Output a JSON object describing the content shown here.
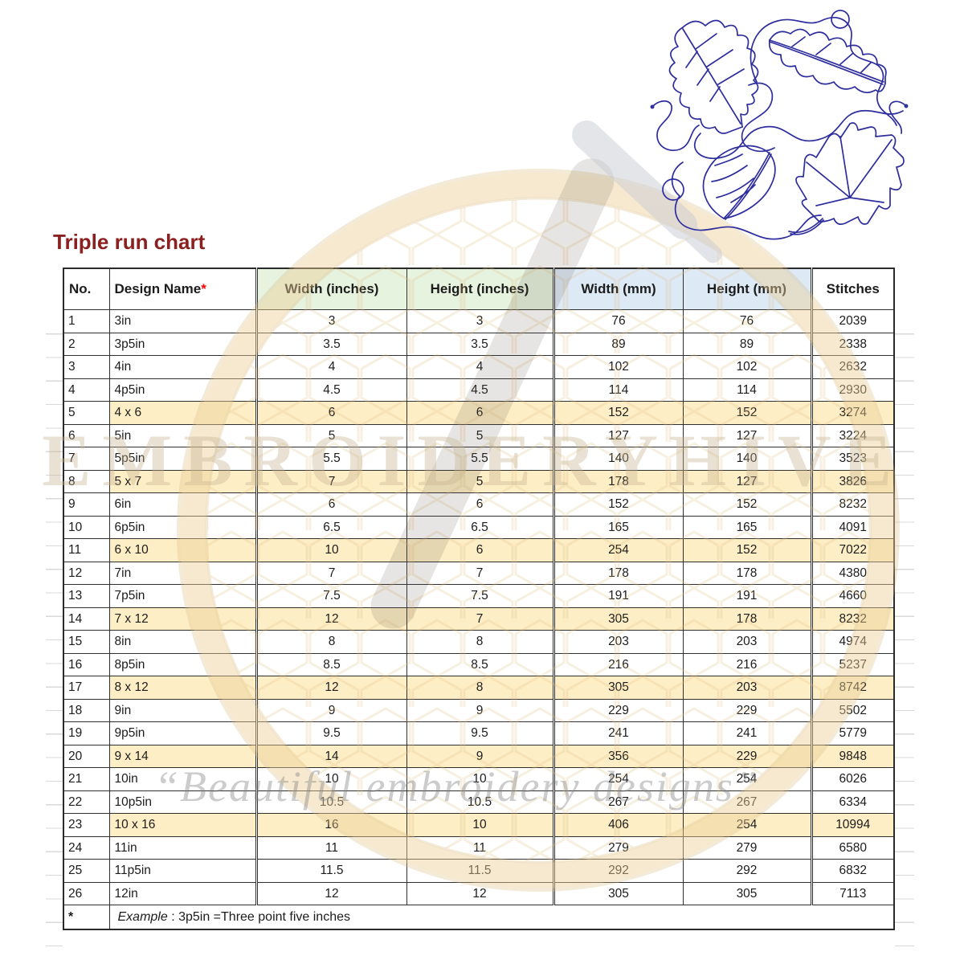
{
  "page_title": "Triple run chart",
  "header": {
    "no": "No.",
    "name": "Design Name",
    "name_marker": "*",
    "width_in": "Width (inches)",
    "height_in": "Height (inches)",
    "width_mm": "Width (mm)",
    "height_mm": "Height (mm)",
    "stitches": "Stitches"
  },
  "footnote": {
    "marker": "*",
    "label": "Example",
    "text": " : 3p5in =Three point five inches"
  },
  "watermarks": {
    "brand": "EMBROIDERYHIVE",
    "tagline": "“Beautiful embroidery designs”"
  },
  "decor": {
    "leaf_design": "blue-line-art embroidery quilt block with oak leaf, slender leaf, oval leaf and maple leaf joined by meander stipple stitching"
  },
  "colors": {
    "title": "#8B2020",
    "accent-red": "#FF0000",
    "inches-fill": "#E6F3DF",
    "mm-fill": "#DDEAF6",
    "highlight-fill": "#FDEEC6",
    "thread-blue": "#2D2D9E",
    "watermark-tan": "#E0BE82",
    "grid-line": "#D9D9D9"
  },
  "chart_data": {
    "type": "table",
    "title": "Triple run chart",
    "columns": [
      "No.",
      "Design Name*",
      "Width (inches)",
      "Height (inches)",
      "Width (mm)",
      "Height (mm)",
      "Stitches"
    ],
    "rows": [
      [
        "1",
        "3in",
        "3",
        "3",
        "76",
        "76",
        "2039"
      ],
      [
        "2",
        "3p5in",
        "3.5",
        "3.5",
        "89",
        "89",
        "2338"
      ],
      [
        "3",
        "4in",
        "4",
        "4",
        "102",
        "102",
        "2632"
      ],
      [
        "4",
        "4p5in",
        "4.5",
        "4.5",
        "114",
        "114",
        "2930"
      ],
      [
        "5",
        "4 x 6",
        "6",
        "6",
        "152",
        "152",
        "3274"
      ],
      [
        "6",
        "5in",
        "5",
        "5",
        "127",
        "127",
        "3224"
      ],
      [
        "7",
        "5p5in",
        "5.5",
        "5.5",
        "140",
        "140",
        "3523"
      ],
      [
        "8",
        "5 x 7",
        "7",
        "5",
        "178",
        "127",
        "3826"
      ],
      [
        "9",
        "6in",
        "6",
        "6",
        "152",
        "152",
        "8232"
      ],
      [
        "10",
        "6p5in",
        "6.5",
        "6.5",
        "165",
        "165",
        "4091"
      ],
      [
        "11",
        "6 x 10",
        "10",
        "6",
        "254",
        "152",
        "7022"
      ],
      [
        "12",
        "7in",
        "7",
        "7",
        "178",
        "178",
        "4380"
      ],
      [
        "13",
        "7p5in",
        "7.5",
        "7.5",
        "191",
        "191",
        "4660"
      ],
      [
        "14",
        "7 x 12",
        "12",
        "7",
        "305",
        "178",
        "8232"
      ],
      [
        "15",
        "8in",
        "8",
        "8",
        "203",
        "203",
        "4974"
      ],
      [
        "16",
        "8p5in",
        "8.5",
        "8.5",
        "216",
        "216",
        "5237"
      ],
      [
        "17",
        "8 x 12",
        "12",
        "8",
        "305",
        "203",
        "8742"
      ],
      [
        "18",
        "9in",
        "9",
        "9",
        "229",
        "229",
        "5502"
      ],
      [
        "19",
        "9p5in",
        "9.5",
        "9.5",
        "241",
        "241",
        "5779"
      ],
      [
        "20",
        "9 x 14",
        "14",
        "9",
        "356",
        "229",
        "9848"
      ],
      [
        "21",
        "10in",
        "10",
        "10",
        "254",
        "254",
        "6026"
      ],
      [
        "22",
        "10p5in",
        "10.5",
        "10.5",
        "267",
        "267",
        "6334"
      ],
      [
        "23",
        "10 x 16",
        "16",
        "10",
        "406",
        "254",
        "10994"
      ],
      [
        "24",
        "11in",
        "11",
        "11",
        "279",
        "279",
        "6580"
      ],
      [
        "25",
        "11p5in",
        "11.5",
        "11.5",
        "292",
        "292",
        "6832"
      ],
      [
        "26",
        "12in",
        "12",
        "12",
        "305",
        "305",
        "7113"
      ]
    ],
    "highlighted_row_numbers": [
      5,
      8,
      11,
      14,
      17,
      20,
      23
    ]
  }
}
